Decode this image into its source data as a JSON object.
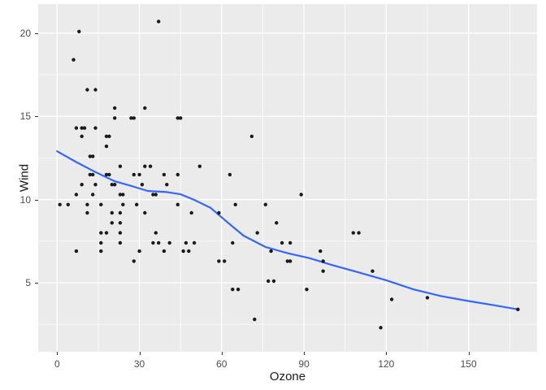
{
  "chart_data": {
    "type": "scatter",
    "title": "",
    "xlabel": "Ozone",
    "ylabel": "Wind",
    "x_ticks": [
      0,
      30,
      60,
      90,
      120,
      150
    ],
    "y_ticks": [
      5,
      10,
      15,
      20
    ],
    "x_minor_ticks": [
      15,
      45,
      75,
      105,
      135,
      165
    ],
    "y_minor_ticks": [
      2.5,
      7.5,
      12.5,
      17.5
    ],
    "xlim": [
      -6.9,
      175.0
    ],
    "ylim": [
      0.85,
      21.75
    ],
    "grid": "on",
    "legend_position": "none",
    "points": [
      [
        37,
        20.7
      ],
      [
        8,
        20.1
      ],
      [
        6,
        18.4
      ],
      [
        11,
        16.6
      ],
      [
        14,
        16.6
      ],
      [
        21,
        15.5
      ],
      [
        32,
        15.5
      ],
      [
        21,
        14.9
      ],
      [
        27,
        14.9
      ],
      [
        28,
        14.9
      ],
      [
        44,
        14.9
      ],
      [
        45,
        14.9
      ],
      [
        7,
        14.3
      ],
      [
        9,
        14.3
      ],
      [
        10,
        14.3
      ],
      [
        14,
        14.3
      ],
      [
        9,
        13.8
      ],
      [
        18,
        13.8
      ],
      [
        19,
        13.8
      ],
      [
        71,
        13.8
      ],
      [
        18,
        13.2
      ],
      [
        12,
        12.6
      ],
      [
        13,
        12.6
      ],
      [
        23,
        12.0
      ],
      [
        32,
        12.0
      ],
      [
        34,
        12.0
      ],
      [
        52,
        12.0
      ],
      [
        12,
        11.5
      ],
      [
        13,
        11.5
      ],
      [
        18,
        11.5
      ],
      [
        19,
        11.5
      ],
      [
        28,
        11.5
      ],
      [
        30,
        11.5
      ],
      [
        39,
        11.5
      ],
      [
        44,
        11.5
      ],
      [
        63,
        11.5
      ],
      [
        9,
        10.9
      ],
      [
        14,
        10.9
      ],
      [
        20,
        10.9
      ],
      [
        21,
        10.9
      ],
      [
        31,
        10.9
      ],
      [
        40,
        10.9
      ],
      [
        7,
        10.3
      ],
      [
        13,
        10.3
      ],
      [
        23,
        10.3
      ],
      [
        24,
        10.3
      ],
      [
        35,
        10.3
      ],
      [
        36,
        10.3
      ],
      [
        89,
        10.3
      ],
      [
        1,
        9.7
      ],
      [
        4,
        9.7
      ],
      [
        11,
        9.7
      ],
      [
        16,
        9.7
      ],
      [
        24,
        9.7
      ],
      [
        29,
        9.7
      ],
      [
        44,
        9.7
      ],
      [
        65,
        9.7
      ],
      [
        76,
        9.7
      ],
      [
        11,
        9.2
      ],
      [
        20,
        9.2
      ],
      [
        23,
        9.2
      ],
      [
        32,
        9.2
      ],
      [
        49,
        9.2
      ],
      [
        59,
        9.2
      ],
      [
        20,
        8.6
      ],
      [
        23,
        8.6
      ],
      [
        80,
        8.6
      ],
      [
        16,
        8.0
      ],
      [
        18,
        8.0
      ],
      [
        23,
        8.0
      ],
      [
        36,
        8.0
      ],
      [
        73,
        8.0
      ],
      [
        108,
        8.0
      ],
      [
        110,
        8.0
      ],
      [
        16,
        7.4
      ],
      [
        23,
        7.4
      ],
      [
        35,
        7.4
      ],
      [
        37,
        7.4
      ],
      [
        41,
        7.4
      ],
      [
        47,
        7.4
      ],
      [
        50,
        7.4
      ],
      [
        64,
        7.4
      ],
      [
        82,
        7.4
      ],
      [
        85,
        7.4
      ],
      [
        7,
        6.9
      ],
      [
        16,
        6.9
      ],
      [
        30,
        6.9
      ],
      [
        39,
        6.9
      ],
      [
        46,
        6.9
      ],
      [
        48,
        6.9
      ],
      [
        78,
        6.9
      ],
      [
        96,
        6.9
      ],
      [
        28,
        6.3
      ],
      [
        59,
        6.3
      ],
      [
        61,
        6.3
      ],
      [
        84,
        6.3
      ],
      [
        85,
        6.3
      ],
      [
        97,
        6.3
      ],
      [
        97,
        5.7
      ],
      [
        115,
        5.7
      ],
      [
        77,
        5.1
      ],
      [
        79,
        5.1
      ],
      [
        64,
        4.6
      ],
      [
        66,
        4.6
      ],
      [
        91,
        4.6
      ],
      [
        135,
        4.1
      ],
      [
        122,
        4.0
      ],
      [
        168,
        3.4
      ],
      [
        72,
        2.8
      ],
      [
        118,
        2.3
      ]
    ],
    "smooth_line": [
      [
        0,
        12.9
      ],
      [
        7,
        12.25
      ],
      [
        14,
        11.65
      ],
      [
        21,
        11.1
      ],
      [
        27,
        10.82
      ],
      [
        33,
        10.52
      ],
      [
        40,
        10.45
      ],
      [
        45,
        10.32
      ],
      [
        50,
        9.98
      ],
      [
        56,
        9.5
      ],
      [
        62,
        8.65
      ],
      [
        68,
        7.83
      ],
      [
        76,
        7.15
      ],
      [
        84,
        6.78
      ],
      [
        92,
        6.48
      ],
      [
        100,
        6.08
      ],
      [
        110,
        5.62
      ],
      [
        120,
        5.15
      ],
      [
        130,
        4.6
      ],
      [
        140,
        4.2
      ],
      [
        150,
        3.9
      ],
      [
        160,
        3.63
      ],
      [
        168,
        3.4
      ]
    ],
    "colors": {
      "panel_background": "#ebebeb",
      "grid_major": "#ffffff",
      "grid_minor": "#ffffff",
      "point": "#1a1a1a",
      "smooth_line": "#3366ff",
      "tick_text": "#4d4d4d",
      "tick_mark": "#333333",
      "axis_title": "#1a1a1a"
    }
  }
}
